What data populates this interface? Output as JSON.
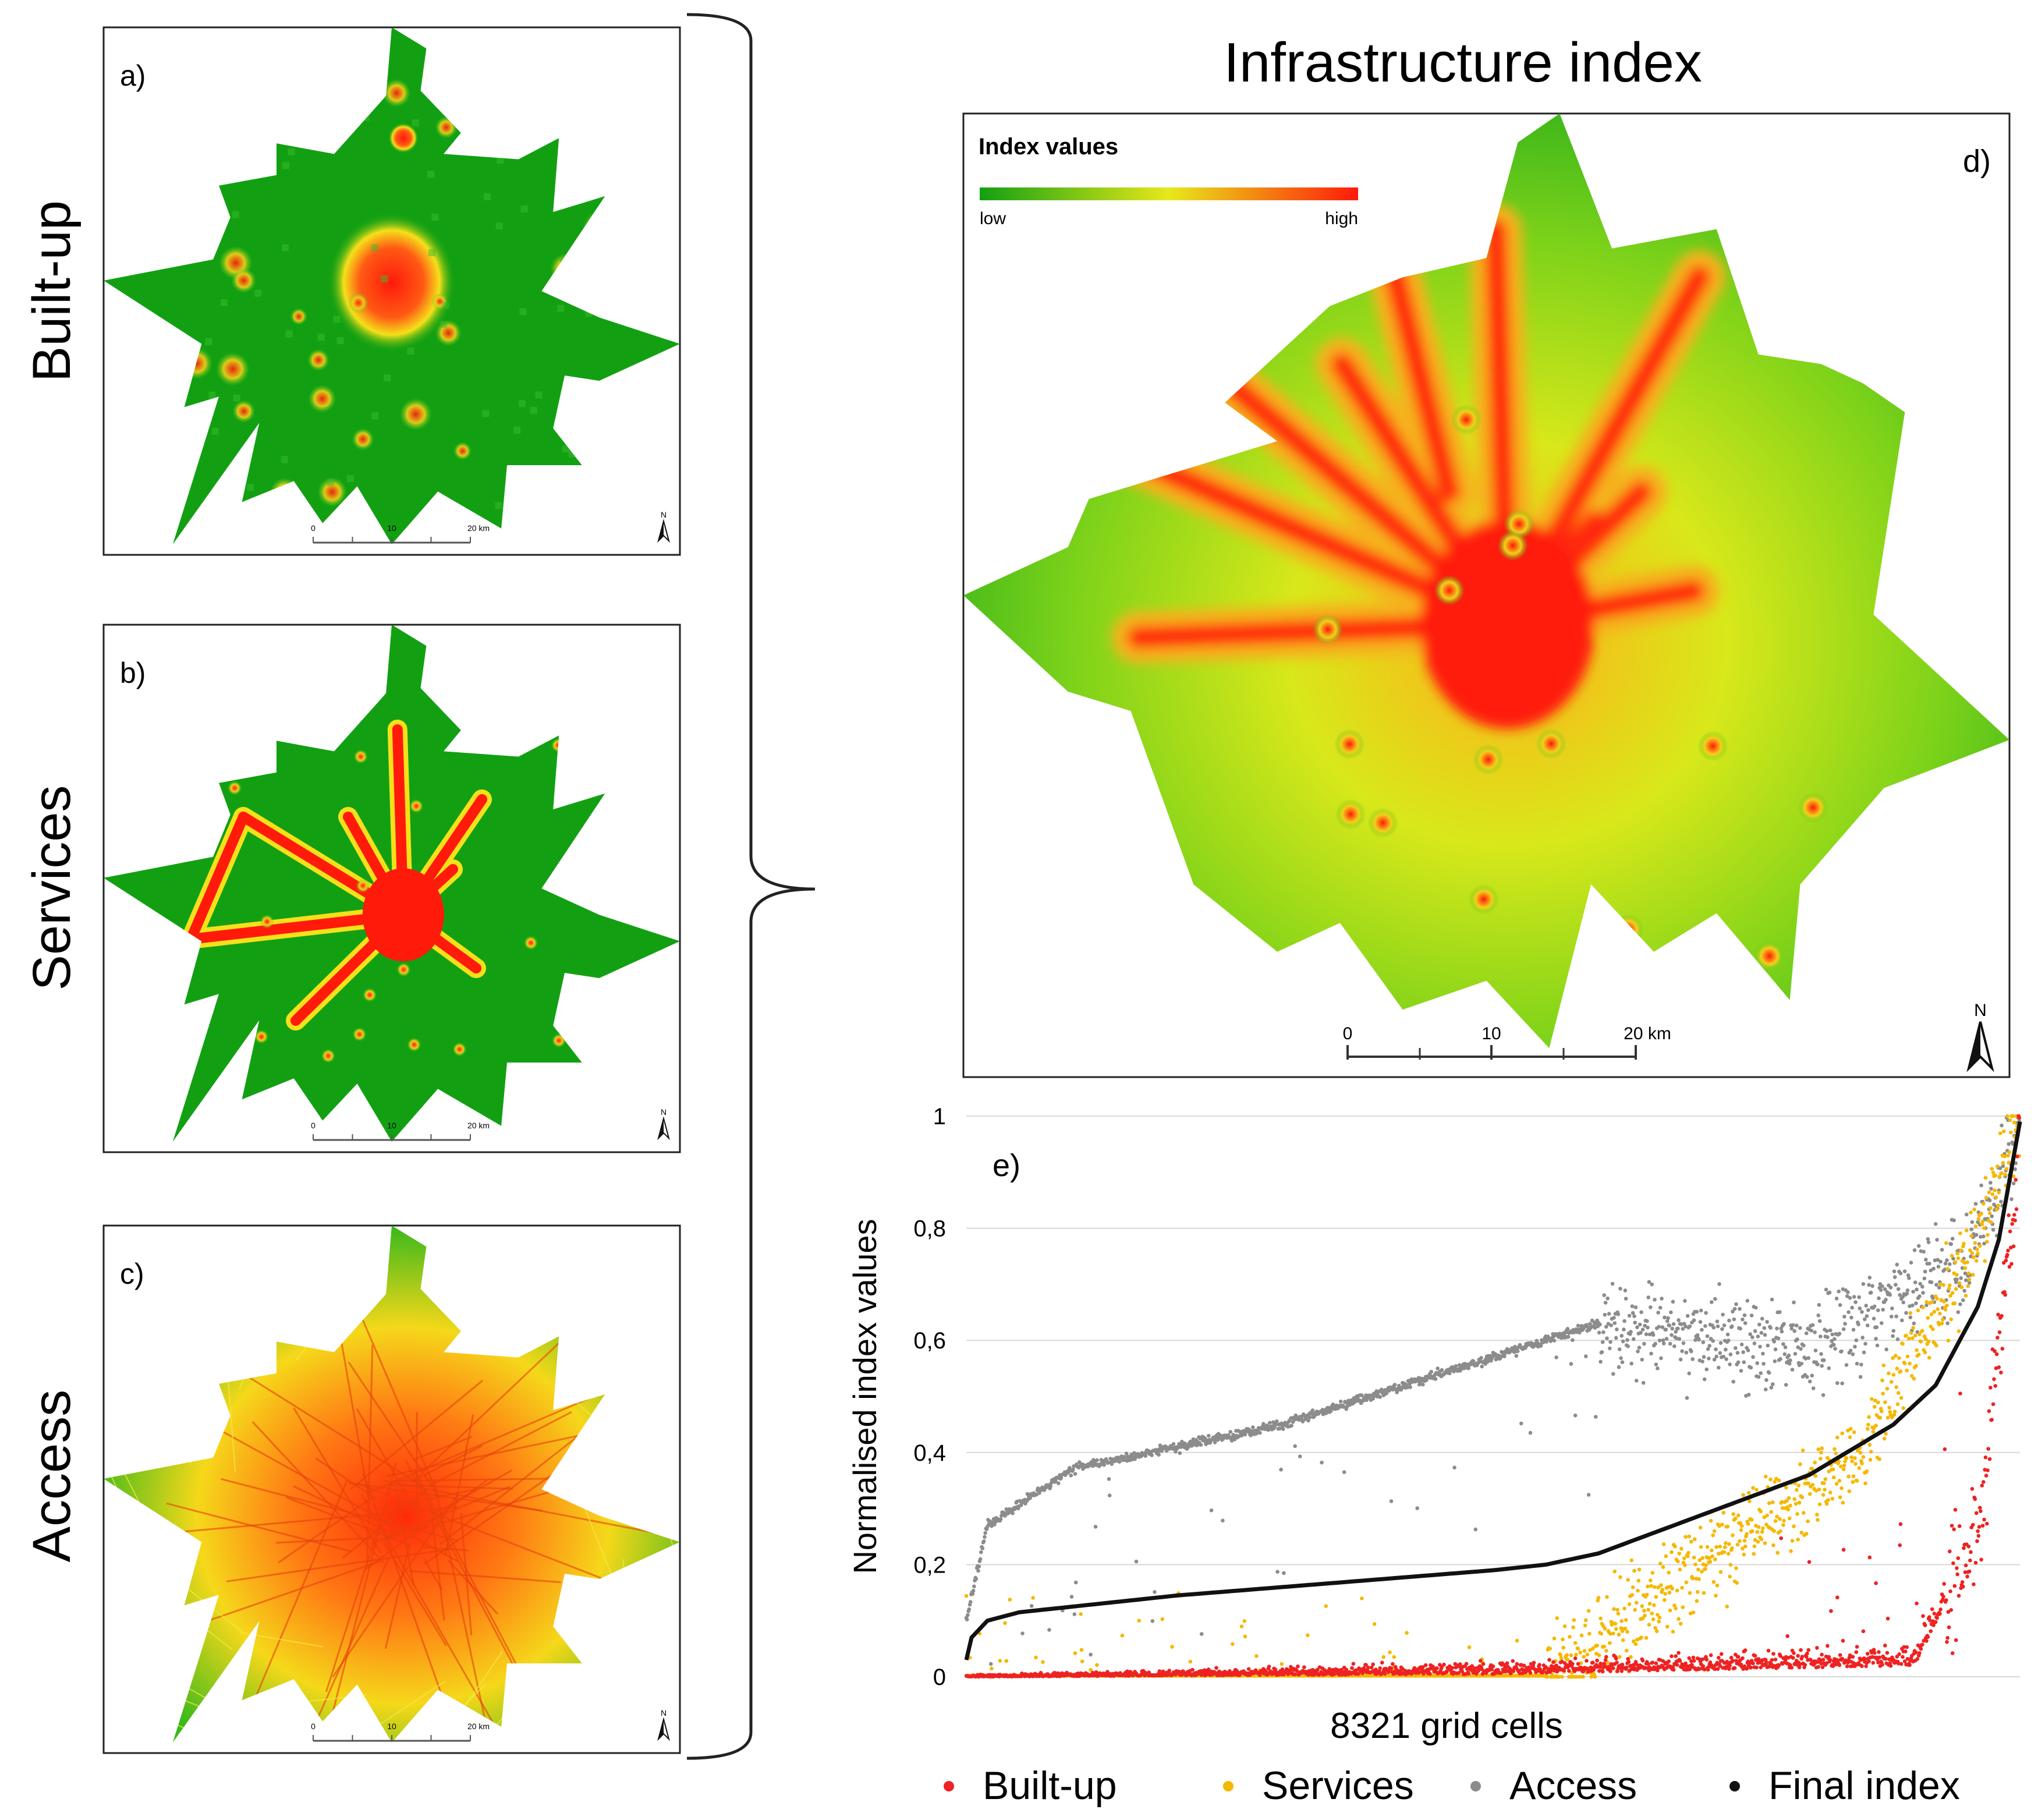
{
  "panels": [
    {
      "letter": "a)",
      "title": "Built-up",
      "theme": "builtup"
    },
    {
      "letter": "b)",
      "title": "Services",
      "theme": "services"
    },
    {
      "letter": "c)",
      "title": "Access",
      "theme": "access"
    }
  ],
  "main_map": {
    "title": "Infrastructure index",
    "letter": "d)",
    "legend_title": "Index values",
    "legend_low": "low",
    "legend_high": "high",
    "scale_labels": [
      "0",
      "10",
      "20 km"
    ],
    "north_label": "N"
  },
  "small_scale_labels": [
    "0",
    "10",
    "20 km"
  ],
  "colors": {
    "low": "#12a012",
    "mid": "#e8e81a",
    "high": "#ff1a0a",
    "builtup": "#ee2222",
    "services": "#f5b800",
    "access": "#8c8c8c",
    "final": "#111111"
  },
  "chart_data": {
    "type": "scatter",
    "letter": "e)",
    "n_points": 8321,
    "xlabel": "8321 grid cells",
    "ylabel": "Normalised index values",
    "ylim": [
      0,
      1
    ],
    "yticks": [
      "0",
      "0,2",
      "0,4",
      "0,6",
      "0,8",
      "1"
    ],
    "ytick_values": [
      0,
      0.2,
      0.4,
      0.6,
      0.8,
      1
    ],
    "grid": true,
    "legend_position": "bottom",
    "series": [
      {
        "name": "Built-up",
        "color": "#ee2222",
        "description": "near 0 for most cells; rises steeply toward 1 for the last ~5% of cells",
        "trend_x": [
          0,
          0.5,
          0.9,
          0.96,
          1.0
        ],
        "trend_y": [
          0.0,
          0.005,
          0.02,
          0.25,
          0.95
        ]
      },
      {
        "name": "Services",
        "color": "#f5b800",
        "description": "0 for first ~55% of cells, then widely scattered rising to 1",
        "trend_x": [
          0,
          0.55,
          0.7,
          0.85,
          0.95,
          1.0
        ],
        "trend_y": [
          0.0,
          0.0,
          0.2,
          0.4,
          0.75,
          1.0
        ]
      },
      {
        "name": "Access",
        "color": "#8c8c8c",
        "description": "sorted band rising from 0.1 to 0.65 over first 60%, then scattered 0.2-0.9",
        "trend_x": [
          0,
          0.02,
          0.1,
          0.3,
          0.6,
          0.8,
          0.95,
          1.0
        ],
        "trend_y": [
          0.1,
          0.27,
          0.37,
          0.45,
          0.63,
          0.58,
          0.75,
          0.95
        ]
      },
      {
        "name": "Final index",
        "color": "#111111",
        "description": "sorted final index curve",
        "x": [
          0.0,
          0.005,
          0.02,
          0.05,
          0.1,
          0.2,
          0.3,
          0.4,
          0.5,
          0.55,
          0.6,
          0.7,
          0.8,
          0.88,
          0.92,
          0.96,
          0.98,
          1.0
        ],
        "y": [
          0.03,
          0.07,
          0.1,
          0.115,
          0.125,
          0.145,
          0.16,
          0.175,
          0.19,
          0.2,
          0.22,
          0.29,
          0.36,
          0.45,
          0.52,
          0.66,
          0.78,
          0.99
        ]
      }
    ]
  }
}
